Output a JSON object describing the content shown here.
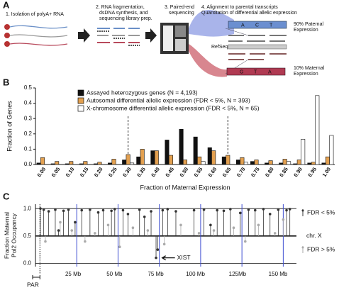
{
  "panel_a": {
    "label": "A",
    "step1": "1. Isolation of polyA+ RNA",
    "step2_lines": [
      "2. RNA fragmentation,",
      "dsDNA synthesis, and",
      "sequencing library prep."
    ],
    "step3_lines": [
      "3. Paired-end",
      "sequencing"
    ],
    "step4_lines": [
      "4. Alignment to parental transcripts",
      "Quantitation of differential allelic expression"
    ],
    "paternal_label": [
      "90% Paternal",
      "Expression"
    ],
    "refseq": "RefSeq",
    "maternal_label": [
      "10% Maternal",
      "Expression"
    ],
    "paternal_bases": [
      "A",
      "C",
      "T"
    ],
    "maternal_bases": [
      "G",
      "T",
      "A"
    ]
  },
  "chart_data": [
    {
      "type": "bar",
      "panel_label": "B",
      "ylabel": "Fraction of Genes",
      "xlabel": "Fraction of Maternal Expression",
      "categories": [
        "0.00",
        "0.05",
        "0.10",
        "0.15",
        "0.20",
        "0.25",
        "0.30",
        "0.35",
        "0.40",
        "0.45",
        "0.50",
        "0.55",
        "0.60",
        "0.65",
        "0.70",
        "0.75",
        "0.80",
        "0.85",
        "0.90",
        "0.95",
        "1.00"
      ],
      "series": [
        {
          "name": "Assayed heterozygous genes (N = 4,193)",
          "color": "#111111",
          "values": [
            0.01,
            0.005,
            0.005,
            0.005,
            0.005,
            0.01,
            0.03,
            0.05,
            0.09,
            0.16,
            0.23,
            0.18,
            0.11,
            0.05,
            0.03,
            0.02,
            0.01,
            0.01,
            0.005,
            0.01,
            0.01
          ]
        },
        {
          "name": "Autosomal differential allelic expression (FDR < 5%, N = 393)",
          "color": "#e3a04f",
          "values": [
            0.045,
            0.02,
            0.02,
            0.02,
            0.015,
            0.035,
            0.065,
            0.1,
            0.09,
            0.06,
            0.03,
            0.05,
            0.09,
            0.06,
            0.045,
            0.03,
            0.025,
            0.035,
            0.03,
            0.015,
            0.05
          ]
        },
        {
          "name": "X-chromosome differential allelic expression (FDR < 5%, N = 65)",
          "color": "#ffffff",
          "values": [
            0,
            0,
            0,
            0,
            0,
            0,
            0.01,
            0,
            0,
            0,
            0,
            0.02,
            0,
            0,
            0.015,
            0,
            0,
            0.02,
            0.165,
            0.45,
            0.19
          ]
        }
      ],
      "ylim": [
        0,
        0.5
      ],
      "yticks": [
        {
          "value": 0,
          "label": "0.0"
        },
        0.1,
        0.2,
        0.3,
        0.4,
        0.5
      ]
    },
    {
      "type": "lollipop",
      "panel_label": "C",
      "ylabel_lines": [
        "Fraction Maternal",
        "Pol2 Occupancy"
      ],
      "track_label": "chr. X",
      "par_label": "PAR",
      "xist_label": "XIST",
      "xlim": [
        0,
        158
      ],
      "ylim": [
        -0.06,
        1.08
      ],
      "xticks": [
        {
          "value": 25,
          "label": "25 Mb"
        },
        {
          "value": 50,
          "label": "50 Mb"
        },
        {
          "value": 75,
          "label": "75 Mb"
        },
        {
          "value": 100,
          "label": "100 Mb"
        },
        {
          "value": 125,
          "label": "125Mb"
        },
        {
          "value": 150,
          "label": "150 Mb"
        }
      ],
      "yticks": [
        {
          "value": 0,
          "label": "0.0"
        },
        0.5,
        {
          "value": 1,
          "label": "1.0"
        }
      ],
      "series": [
        {
          "name": "FDR < 5%",
          "color": "#333333",
          "x": [
            3,
            5,
            8,
            12,
            14,
            17,
            20,
            24,
            28,
            33,
            38,
            41,
            46,
            48,
            53,
            56,
            63,
            66,
            70,
            73,
            74,
            77,
            80,
            85,
            96,
            102,
            106,
            110,
            114,
            118,
            124,
            129,
            133,
            138,
            142,
            147,
            152,
            154
          ],
          "values": [
            1.0,
            0.98,
            0.95,
            0.98,
            0.6,
            0.96,
            0.98,
            0.75,
            0.97,
            0.98,
            0.93,
            0.97,
            0.96,
            0.99,
            0.97,
            0.9,
            0.98,
            0.85,
            0.95,
            0.1,
            0.25,
            0.97,
            0.99,
            0.95,
            0.97,
            0.98,
            0.7,
            0.97,
            0.96,
            0.99,
            0.92,
            0.98,
            0.97,
            0.99,
            0.9,
            0.98,
            0.97,
            0.99
          ]
        },
        {
          "name": "FDR > 5%",
          "color": "#aaaaaa",
          "x": [
            6,
            15,
            22,
            30,
            36,
            44,
            51,
            59,
            68,
            78,
            88,
            99,
            108,
            120,
            127,
            135,
            145,
            150
          ],
          "values": [
            0.4,
            0.75,
            0.6,
            0.4,
            0.55,
            0.7,
            0.3,
            0.65,
            0.6,
            0.35,
            0.7,
            0.55,
            0.6,
            0.65,
            0.4,
            0.7,
            0.55,
            0.8
          ]
        }
      ]
    }
  ]
}
